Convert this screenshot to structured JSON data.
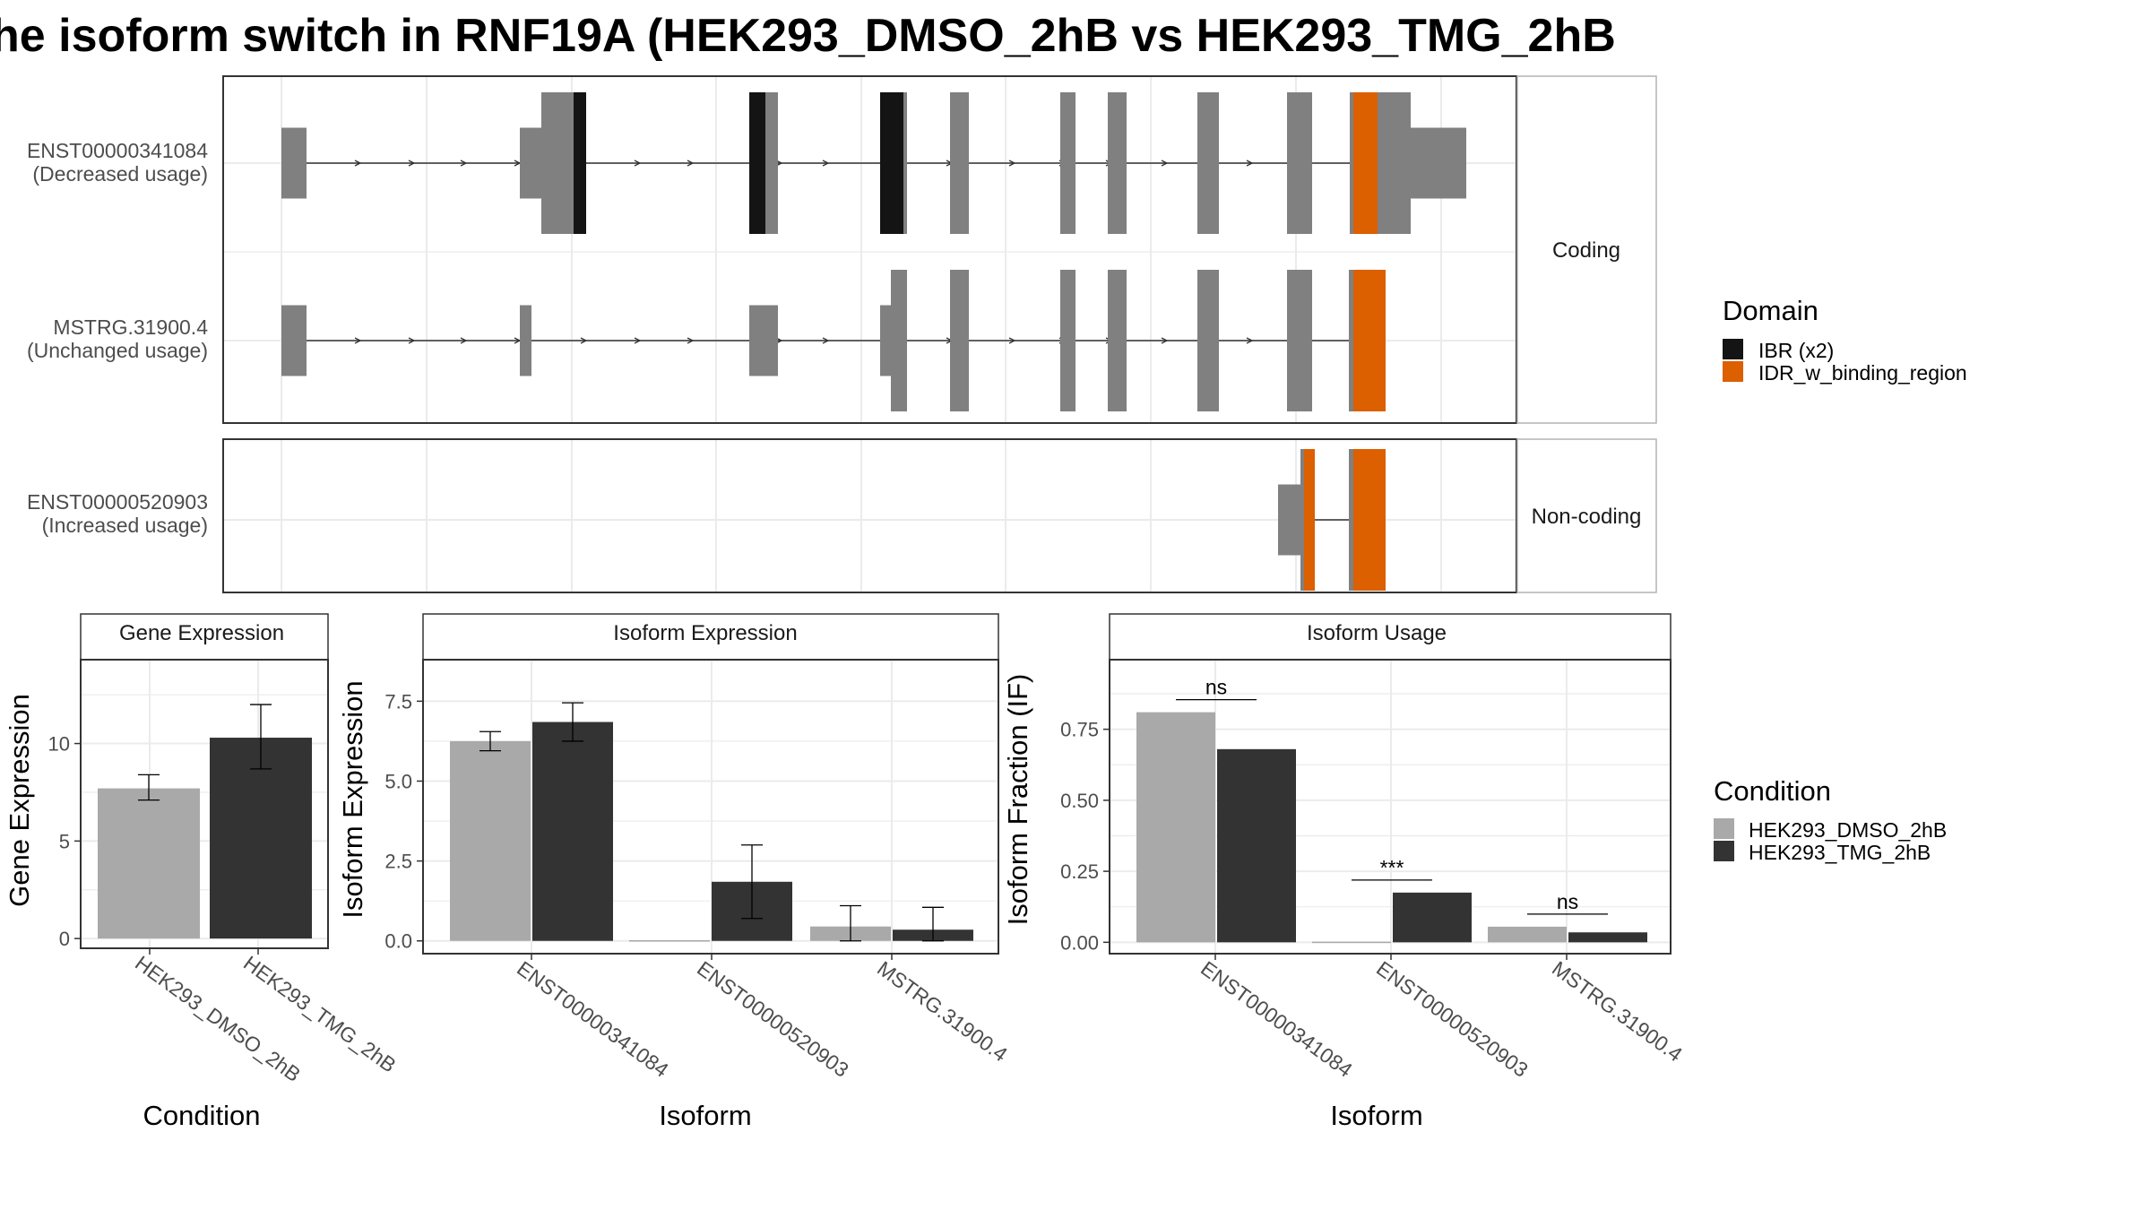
{
  "title": "he isoform switch in RNF19A (HEK293_DMSO_2hB vs HEK293_TMG_2hB",
  "colors": {
    "exon": "#808080",
    "ibr": "#141414",
    "idr": "#dc5f00",
    "dmso": "#a9a9a9",
    "tmg": "#333333",
    "grid": "#ebebeb",
    "panel_border": "#333333",
    "strip_fill": "#ffffff"
  },
  "structure": {
    "panels": [
      {
        "strip": "Coding",
        "transcripts": [
          {
            "id": "ENST00000341084",
            "usage": "(Decreased usage)"
          },
          {
            "id": "MSTRG.31900.4",
            "usage": "(Unchanged usage)"
          }
        ]
      },
      {
        "strip": "Non-coding",
        "transcripts": [
          {
            "id": "ENST00000520903",
            "usage": "(Increased usage)"
          }
        ]
      }
    ],
    "legend": {
      "title": "Domain",
      "items": [
        {
          "label": "IBR (x2)",
          "color": "#141414"
        },
        {
          "label": "IDR_w_binding_region",
          "color": "#dc5f00"
        }
      ]
    }
  },
  "chart_data": [
    {
      "type": "bar",
      "title": "Gene Expression",
      "xlabel": "Condition",
      "ylabel": "Gene Expression",
      "categories": [
        "HEK293_DMSO_2hB",
        "HEK293_TMG_2hB"
      ],
      "series": [
        {
          "name": "HEK293_DMSO_2hB",
          "values": [
            7.7,
            null
          ],
          "err_low": [
            7.1,
            null
          ],
          "err_high": [
            8.4,
            null
          ]
        },
        {
          "name": "HEK293_TMG_2hB",
          "values": [
            null,
            10.3
          ],
          "err_low": [
            null,
            8.7
          ],
          "err_high": [
            null,
            12.0
          ]
        }
      ],
      "yticks": [
        0,
        5,
        10
      ],
      "ylim": [
        -0.5,
        14.3
      ]
    },
    {
      "type": "bar",
      "title": "Isoform Expression",
      "xlabel": "Isoform",
      "ylabel": "Isoform Expression",
      "categories": [
        "ENST00000341084",
        "ENST00000520903",
        "MSTRG.31900.4"
      ],
      "series": [
        {
          "name": "HEK293_DMSO_2hB",
          "values": [
            6.25,
            0.0,
            0.45
          ],
          "err_low": [
            5.95,
            0.0,
            0.0
          ],
          "err_high": [
            6.55,
            0.0,
            1.1
          ]
        },
        {
          "name": "HEK293_TMG_2hB",
          "values": [
            6.85,
            1.85,
            0.35
          ],
          "err_low": [
            6.25,
            0.7,
            0.0
          ],
          "err_high": [
            7.45,
            3.0,
            1.05
          ]
        }
      ],
      "yticks": [
        0.0,
        2.5,
        5.0,
        7.5
      ],
      "ytick_labels": [
        "0.0",
        "2.5",
        "5.0",
        "7.5"
      ],
      "ylim": [
        -0.4,
        8.8
      ]
    },
    {
      "type": "bar",
      "title": "Isoform Usage",
      "xlabel": "Isoform",
      "ylabel": "Isoform Fraction (IF)",
      "categories": [
        "ENST00000341084",
        "ENST00000520903",
        "MSTRG.31900.4"
      ],
      "series": [
        {
          "name": "HEK293_DMSO_2hB",
          "values": [
            0.81,
            0.0,
            0.055
          ]
        },
        {
          "name": "HEK293_TMG_2hB",
          "values": [
            0.68,
            0.175,
            0.035
          ]
        }
      ],
      "significance": [
        "ns",
        "***",
        "ns"
      ],
      "yticks": [
        0.0,
        0.25,
        0.5,
        0.75
      ],
      "ytick_labels": [
        "0.00",
        "0.25",
        "0.50",
        "0.75"
      ],
      "ylim": [
        -0.04,
        0.995
      ]
    }
  ],
  "condition_legend": {
    "title": "Condition",
    "items": [
      {
        "label": "HEK293_DMSO_2hB",
        "color": "#a9a9a9"
      },
      {
        "label": "HEK293_TMG_2hB",
        "color": "#333333"
      }
    ]
  }
}
